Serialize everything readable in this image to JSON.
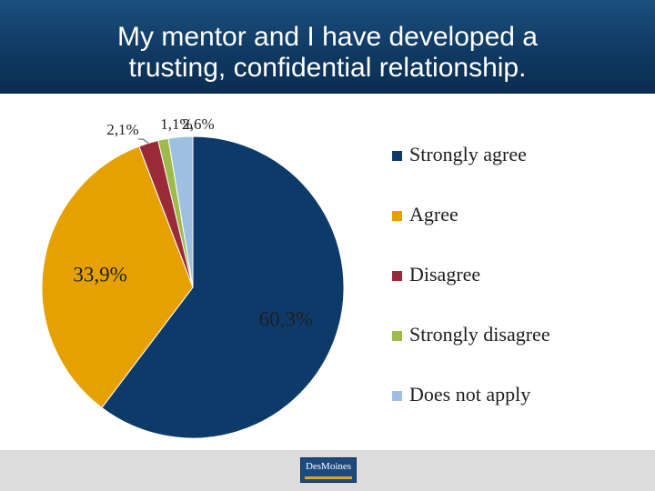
{
  "chart_data": {
    "type": "pie",
    "title_lines": [
      "My mentor and I have developed a",
      "trusting, confidential relationship."
    ],
    "categories": [
      "Strongly agree",
      "Agree",
      "Disagree",
      "Strongly disagree",
      "Does not apply"
    ],
    "values": [
      60.3,
      33.9,
      2.1,
      1.1,
      2.6
    ],
    "value_labels": [
      "60,3%",
      "33,9%",
      "2,1%",
      "1,1%",
      "2,6%"
    ],
    "colors": [
      "#0e3a6a",
      "#e6a100",
      "#9b2a38",
      "#9dbb4a",
      "#9ec0e0"
    ],
    "legend_position": "right"
  },
  "footer": {
    "logo_text": "DesMoines"
  }
}
